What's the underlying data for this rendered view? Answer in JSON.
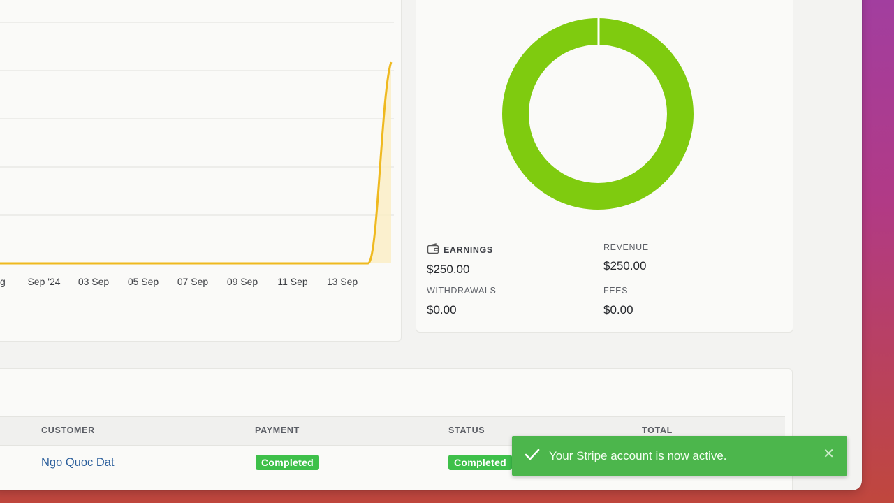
{
  "chart_data": {
    "type": "area",
    "x_tick_labels": [
      "ug",
      "Sep '24",
      "03 Sep",
      "05 Sep",
      "07 Sep",
      "09 Sep",
      "11 Sep",
      "13 Sep"
    ],
    "series": [
      {
        "points": [
          {
            "x": "Aug",
            "y": 0
          },
          {
            "x": "Sep '24",
            "y": 0
          },
          {
            "x": "03 Sep",
            "y": 0
          },
          {
            "x": "05 Sep",
            "y": 0
          },
          {
            "x": "07 Sep",
            "y": 0
          },
          {
            "x": "09 Sep",
            "y": 0
          },
          {
            "x": "11 Sep",
            "y": 0
          },
          {
            "x": "13 Sep",
            "y": 0
          },
          {
            "x": "14 Sep",
            "y": 0
          },
          {
            "x": "15 Sep",
            "y": 250
          }
        ]
      }
    ],
    "grid": true,
    "color": "#efb91f"
  },
  "donut": {
    "type": "pie",
    "slices": [
      {
        "label": "Earnings",
        "value": 250,
        "color": "#7fcb0f"
      }
    ]
  },
  "stats": {
    "earnings_label": "EARNINGS",
    "earnings_value": "$250.00",
    "revenue_label": "REVENUE",
    "revenue_value": "$250.00",
    "withdrawals_label": "WITHDRAWALS",
    "withdrawals_value": "$0.00",
    "fees_label": "FEES",
    "fees_value": "$0.00",
    "earnings_icon": "wallet-icon"
  },
  "table": {
    "headers": {
      "customer": "CUSTOMER",
      "payment": "PAYMENT",
      "status": "STATUS",
      "total": "TOTAL"
    },
    "rows": [
      {
        "customer": "Ngo Quoc Dat",
        "payment": "Completed",
        "status": "Completed"
      }
    ]
  },
  "toast": {
    "message": "Your Stripe account is now active.",
    "icon": "check-icon",
    "close_icon": "close-icon",
    "color": "#4cb64c"
  }
}
